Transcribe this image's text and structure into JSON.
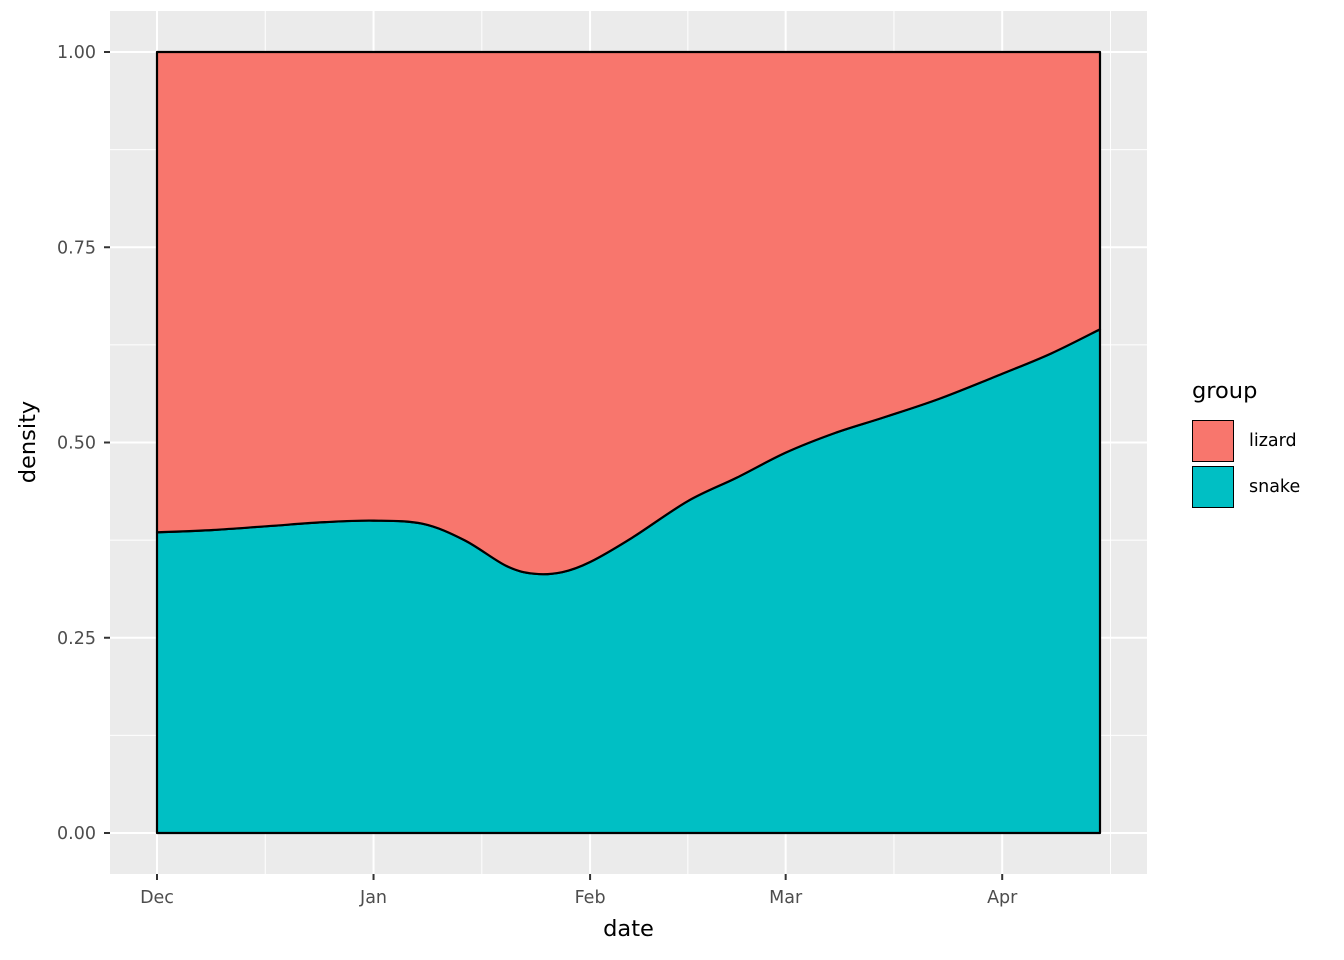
{
  "figure": {
    "background": "#FFFFFF",
    "panel_bg": "#EBEBEB",
    "grid_color": "#FFFFFF",
    "area_outline_color": "#000000",
    "tick_mark_color": "#333333",
    "tick_label_color": "#4D4D4D",
    "axis_title_color": "#000000"
  },
  "axes": {
    "x": {
      "title": "date",
      "tick_labels": [
        "Dec",
        "Jan",
        "Feb",
        "Mar",
        "Apr"
      ]
    },
    "y": {
      "title": "density",
      "tick_labels": [
        "0.00",
        "0.25",
        "0.50",
        "0.75",
        "1.00"
      ]
    }
  },
  "legend": {
    "title": "group",
    "items": [
      {
        "label": "lizard",
        "color": "#F8766D"
      },
      {
        "label": "snake",
        "color": "#00BFC4"
      }
    ]
  },
  "chart_data": {
    "type": "area",
    "stacked": true,
    "normalized": true,
    "title": "",
    "xlabel": "date",
    "ylabel": "density",
    "ylim": [
      0,
      1
    ],
    "x_unit": "days_from_Dec_1",
    "x": [
      0,
      8,
      16,
      24,
      31,
      38,
      44,
      50,
      54,
      58,
      62,
      68,
      76,
      83,
      90,
      97,
      104,
      112,
      121,
      128,
      135
    ],
    "x_ticks": {
      "labels": [
        "Dec",
        "Jan",
        "Feb",
        "Mar",
        "Apr"
      ],
      "positions": [
        0,
        31,
        62,
        90,
        121
      ]
    },
    "y_ticks": {
      "labels": [
        "0.00",
        "0.25",
        "0.50",
        "0.75",
        "1.00"
      ],
      "values": [
        0,
        0.25,
        0.5,
        0.75,
        1
      ]
    },
    "series": [
      {
        "name": "snake",
        "color": "#00BFC4",
        "values": [
          0.385,
          0.388,
          0.393,
          0.398,
          0.4,
          0.396,
          0.375,
          0.342,
          0.332,
          0.334,
          0.347,
          0.378,
          0.425,
          0.455,
          0.487,
          0.512,
          0.532,
          0.556,
          0.588,
          0.614,
          0.645
        ]
      },
      {
        "name": "lizard",
        "color": "#F8766D",
        "values": [
          0.615,
          0.612,
          0.607,
          0.602,
          0.6,
          0.604,
          0.625,
          0.658,
          0.668,
          0.666,
          0.653,
          0.622,
          0.575,
          0.545,
          0.513,
          0.488,
          0.468,
          0.444,
          0.412,
          0.386,
          0.355
        ]
      }
    ],
    "legend_position": "right",
    "grid": true
  }
}
